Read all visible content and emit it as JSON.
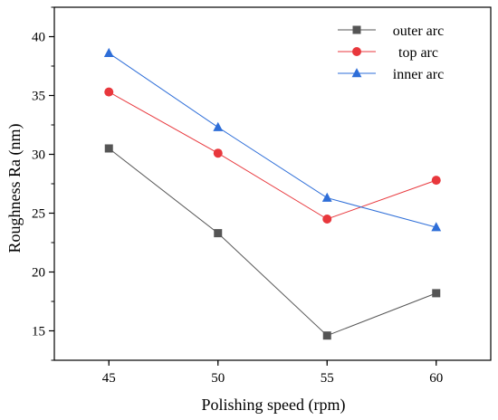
{
  "chart_data": {
    "type": "line",
    "title": "",
    "xlabel": "Polishing speed (rpm)",
    "ylabel": "Roughness Ra (nm)",
    "x": [
      45,
      50,
      55,
      60
    ],
    "xticks": [
      "45",
      "50",
      "55",
      "60"
    ],
    "yticks": [
      "15",
      "20",
      "25",
      "30",
      "35",
      "40"
    ],
    "xlim": [
      42.5,
      62.5
    ],
    "ylim": [
      12.5,
      42.5
    ],
    "grid": false,
    "legend_position": "top-right",
    "series": [
      {
        "name": "outer arc",
        "values": [
          30.5,
          23.3,
          14.6,
          18.2
        ],
        "color": "#555555",
        "marker": "square"
      },
      {
        "name": "top arc",
        "values": [
          35.3,
          30.1,
          24.5,
          27.8
        ],
        "color": "#e8373c",
        "marker": "circle"
      },
      {
        "name": "inner arc",
        "values": [
          38.6,
          32.3,
          26.3,
          23.8
        ],
        "color": "#2e6ed8",
        "marker": "triangle"
      }
    ]
  }
}
